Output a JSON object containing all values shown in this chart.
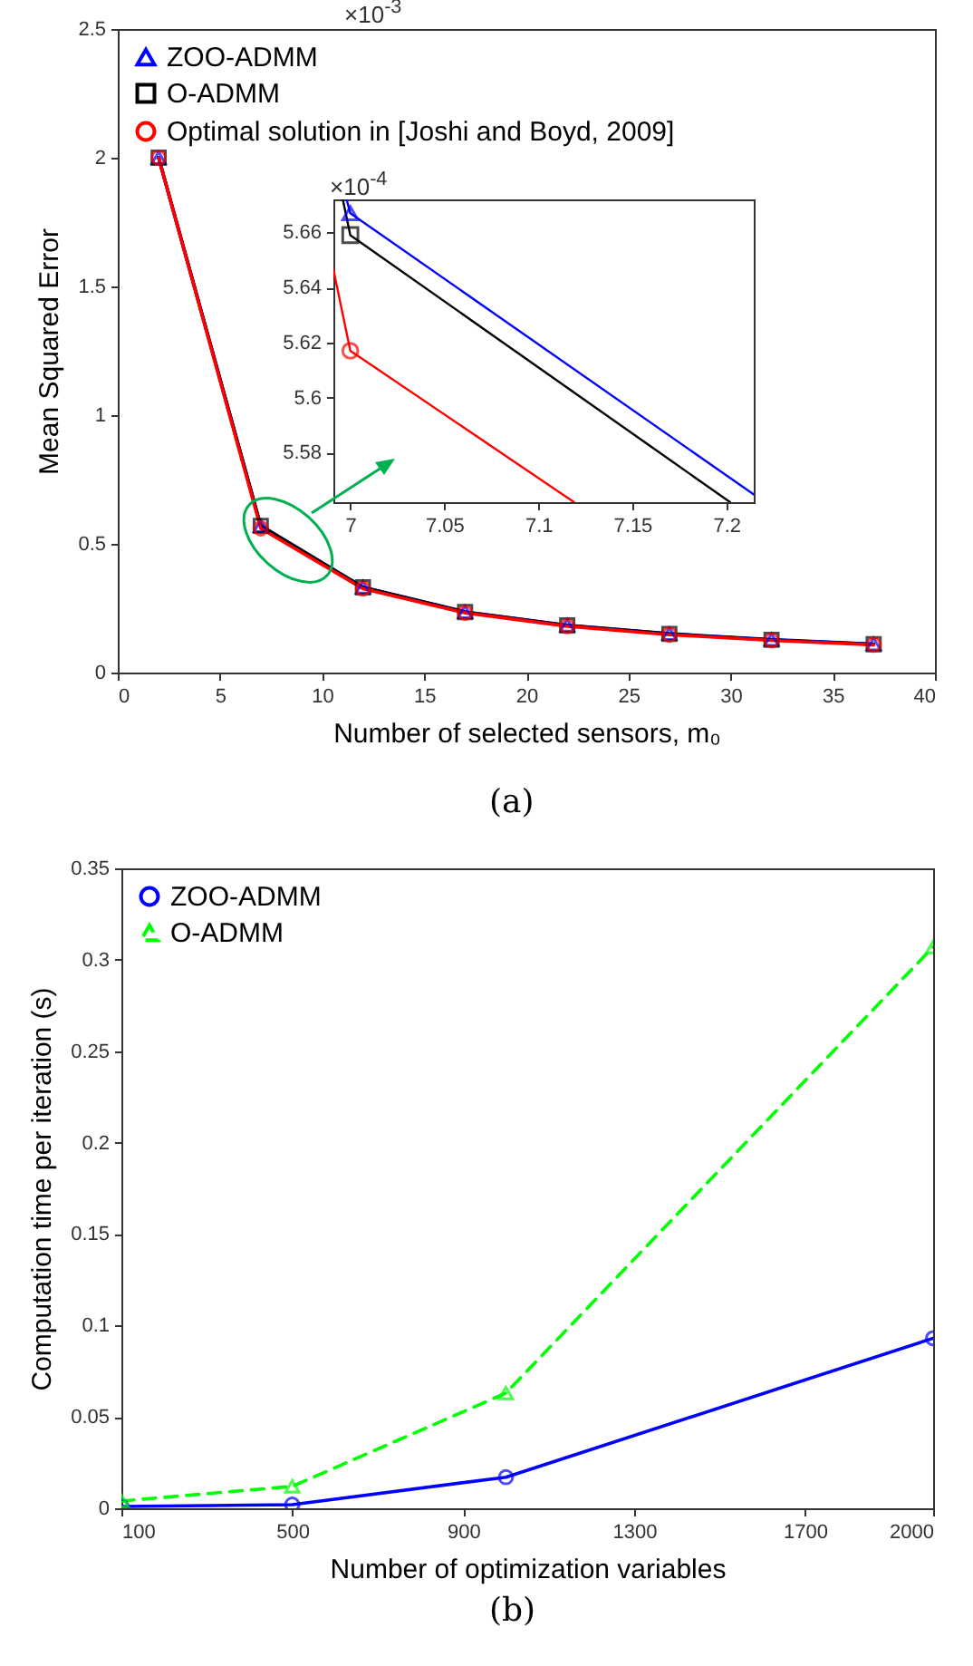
{
  "chart_data": [
    {
      "type": "line",
      "xlabel": "Number of selected sensors, m₀",
      "ylabel": "Mean Squared Error",
      "annotations": [
        "×10$^{-3}$",
        "(a)"
      ],
      "x": [
        2,
        7,
        12,
        17,
        22,
        27,
        32,
        37
      ],
      "xlim": [
        0,
        40
      ],
      "xticks": [
        0,
        5,
        10,
        15,
        20,
        25,
        30,
        35,
        40
      ],
      "ylim": [
        0,
        2.5
      ],
      "yticks": [
        0,
        0.5,
        1,
        1.5,
        2,
        2.5
      ],
      "grid": false,
      "legend": "top left",
      "series": [
        {
          "name": "ZOO-ADMM",
          "color": "#0000ff",
          "marker": "triangle",
          "values": [
            2.0,
            0.57,
            0.332,
            0.236,
            0.184,
            0.151,
            0.128,
            0.111
          ]
        },
        {
          "name": "O-ADMM",
          "color": "#000000",
          "marker": "square",
          "values": [
            2.0,
            0.57,
            0.331,
            0.235,
            0.183,
            0.15,
            0.127,
            0.11
          ]
        },
        {
          "name": "Optimal solution in [Joshi and Boyd, 2009]",
          "color": "#ff0000",
          "marker": "circle",
          "values": [
            2.0,
            0.56,
            0.326,
            0.232,
            0.18,
            0.147,
            0.125,
            0.108
          ]
        }
      ]
    },
    {
      "type": "line",
      "annotations": [
        "×10$^{-4}$"
      ],
      "xlim": [
        6.991,
        7.2146
      ],
      "xticks": [
        7,
        7.05,
        7.1,
        7.15,
        7.2
      ],
      "ylim": [
        5.562,
        5.672
      ],
      "yticks": [
        5.58,
        5.6,
        5.62,
        5.64,
        5.66
      ],
      "grid": false,
      "series": [
        {
          "color": "#0000ff",
          "x": [
            6.998,
            7,
            7.2146
          ],
          "values": [
            5.672,
            5.667,
            5.5648
          ]
        },
        {
          "color": "#000000",
          "x": [
            6.996,
            7,
            7.202
          ],
          "values": [
            5.672,
            5.659,
            5.562
          ]
        },
        {
          "color": "#ff0000",
          "x": [
            6.991,
            7,
            7.119
          ],
          "values": [
            5.6466,
            5.617,
            5.562
          ]
        },
        {
          "type": "scatter",
          "color": "#0000ff",
          "marker": "triangle",
          "x": [
            7
          ],
          "values": [
            5.667
          ]
        },
        {
          "type": "scatter",
          "color": "#000000",
          "marker": "square",
          "x": [
            7
          ],
          "values": [
            5.659
          ]
        },
        {
          "type": "scatter",
          "color": "#ff0000",
          "marker": "circle",
          "x": [
            7
          ],
          "values": [
            5.617
          ]
        }
      ]
    },
    {
      "type": "line",
      "xlabel": "Number of optimization variables",
      "ylabel": "Computation time per iteration (s)",
      "annotations": [
        "(b)"
      ],
      "x": [
        100,
        500,
        1000,
        2000
      ],
      "xlim": [
        100,
        2000
      ],
      "xticks": [
        100,
        500,
        900,
        1300,
        1700,
        2000
      ],
      "ylim": [
        0,
        0.35
      ],
      "yticks": [
        0,
        0.05,
        0.1,
        0.15,
        0.2,
        0.25,
        0.3,
        0.35
      ],
      "grid": false,
      "legend": "top left",
      "series": [
        {
          "name": "ZOO-ADMM",
          "color": "#0000ff",
          "marker": "circle",
          "line_style": "solid",
          "values": [
            0.001,
            0.002,
            0.017,
            0.093
          ]
        },
        {
          "name": "O-ADMM",
          "color": "#00ff00",
          "marker": "triangle",
          "line_style": "dashed",
          "values": [
            0.004,
            0.012,
            0.063,
            0.307
          ]
        }
      ]
    }
  ]
}
